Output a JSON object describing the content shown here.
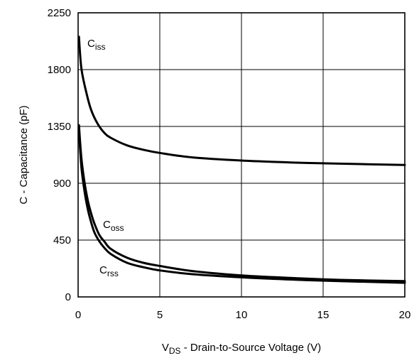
{
  "chart_data": {
    "type": "line",
    "xlabel": {
      "main": "V",
      "sub": "DS",
      "rest": " - Drain-to-Source Voltage (V)"
    },
    "ylabel": "C - Capacitance (pF)",
    "xlim": [
      0,
      20
    ],
    "ylim": [
      0,
      2250
    ],
    "x_ticks": [
      0,
      5,
      10,
      15,
      20
    ],
    "y_ticks": [
      0,
      450,
      900,
      1350,
      1800,
      2250
    ],
    "grid": true,
    "series": [
      {
        "name": "Ciss",
        "label_main": "C",
        "label_sub": "iss",
        "x": [
          0.05,
          0.2,
          0.5,
          0.8,
          1.2,
          1.6,
          2.0,
          3.0,
          4.0,
          5.0,
          7.0,
          10.0,
          13.0,
          16.0,
          20.0
        ],
        "y": [
          2060,
          1810,
          1620,
          1480,
          1370,
          1300,
          1260,
          1200,
          1165,
          1140,
          1105,
          1080,
          1065,
          1055,
          1045
        ]
      },
      {
        "name": "Coss",
        "label_main": "C",
        "label_sub": "oss",
        "x": [
          0.05,
          0.2,
          0.4,
          0.6,
          0.8,
          1.0,
          1.3,
          1.6,
          2.0,
          3.0,
          4.0,
          5.0,
          7.0,
          10.0,
          13.0,
          16.0,
          20.0
        ],
        "y": [
          1360,
          1100,
          900,
          760,
          660,
          580,
          490,
          440,
          380,
          310,
          270,
          245,
          205,
          170,
          150,
          135,
          125
        ]
      },
      {
        "name": "Crss",
        "label_main": "C",
        "label_sub": "rss",
        "x": [
          0.05,
          0.2,
          0.4,
          0.6,
          0.8,
          1.0,
          1.3,
          1.6,
          2.0,
          3.0,
          4.0,
          5.0,
          7.0,
          10.0,
          13.0,
          16.0,
          20.0
        ],
        "y": [
          1320,
          1030,
          830,
          690,
          590,
          510,
          440,
          390,
          340,
          270,
          235,
          210,
          180,
          155,
          138,
          125,
          112
        ]
      }
    ]
  }
}
